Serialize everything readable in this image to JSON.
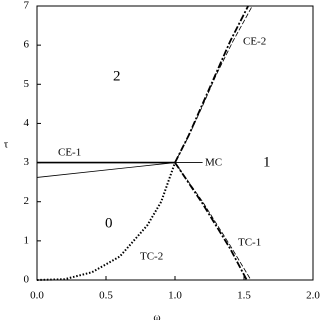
{
  "chart_data": {
    "type": "line",
    "xlabel": "ω",
    "ylabel": "τ",
    "xlim": [
      0,
      2
    ],
    "ylim": [
      0,
      7
    ],
    "xticks": [
      {
        "value": 0,
        "label": "0.0"
      },
      {
        "value": 0.5,
        "label": "0.5"
      },
      {
        "value": 1,
        "label": "1.0"
      },
      {
        "value": 1.5,
        "label": "1.5"
      },
      {
        "value": 2,
        "label": "2.0"
      }
    ],
    "yticks": [
      0,
      1,
      2,
      3,
      4,
      5,
      6,
      7
    ],
    "color": "#000000",
    "series": [
      {
        "style": "solid",
        "width": 1.6,
        "x": [
          0,
          1
        ],
        "values": [
          3,
          3
        ]
      },
      {
        "style": "solid",
        "width": 0.8,
        "x": [
          0,
          1
        ],
        "values": [
          2.62,
          3
        ]
      },
      {
        "style": "solid",
        "width": 0.8,
        "x": [
          1,
          1.2
        ],
        "values": [
          3,
          3
        ]
      },
      {
        "style": "dashdot",
        "width": 1.8,
        "x": [
          1,
          1.1,
          1.2,
          1.3,
          1.4,
          1.53
        ],
        "values": [
          3,
          3.7,
          4.5,
          5.3,
          6.1,
          7
        ]
      },
      {
        "style": "dashed",
        "width": 0.8,
        "x": [
          1,
          1.1,
          1.2,
          1.3,
          1.42,
          1.56
        ],
        "values": [
          3,
          3.68,
          4.45,
          5.25,
          6.1,
          7
        ]
      },
      {
        "style": "dashdot",
        "width": 1.8,
        "x": [
          1,
          1.2,
          1.4,
          1.52
        ],
        "values": [
          3,
          1.95,
          0.8,
          0
        ]
      },
      {
        "style": "dashed",
        "width": 0.8,
        "x": [
          1,
          1.2,
          1.4,
          1.55
        ],
        "values": [
          3,
          2.0,
          0.88,
          0
        ]
      },
      {
        "style": "dotted",
        "width": 2,
        "x": [
          0,
          0.2,
          0.4,
          0.6,
          0.8,
          0.9,
          1
        ],
        "values": [
          0,
          0.02,
          0.2,
          0.6,
          1.4,
          2.0,
          3
        ]
      }
    ],
    "annotations": [
      "2",
      "1",
      "0",
      "CE-1",
      "CE-2",
      "MC",
      "TC-1",
      "TC-2"
    ]
  }
}
